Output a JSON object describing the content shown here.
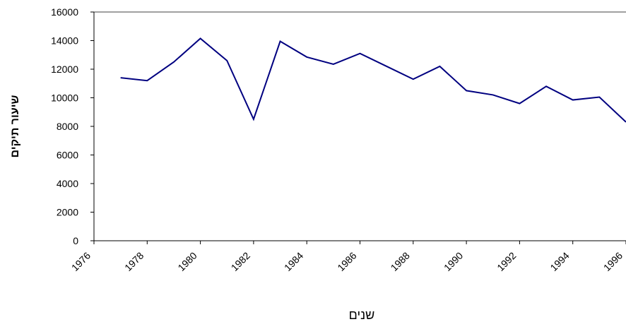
{
  "chart_data": {
    "type": "line",
    "x_label": "שנים",
    "y_label": "שיעור תיקים",
    "x": [
      1977,
      1978,
      1979,
      1980,
      1981,
      1982,
      1983,
      1984,
      1985,
      1986,
      1987,
      1988,
      1989,
      1990,
      1991,
      1992,
      1993,
      1994,
      1995,
      1996
    ],
    "series": [
      {
        "color": "#000080",
        "values": [
          11400,
          11200,
          12500,
          14150,
          12600,
          8500,
          13950,
          12850,
          12350,
          13100,
          12200,
          11300,
          12200,
          10500,
          10200,
          9600,
          10800,
          9850,
          10050,
          8300
        ]
      }
    ],
    "xlim": [
      1976,
      1996
    ],
    "xticks": [
      1976,
      1978,
      1980,
      1982,
      1984,
      1986,
      1988,
      1990,
      1992,
      1994,
      1996
    ],
    "ylim": [
      0,
      16000
    ],
    "yticks": [
      0,
      2000,
      4000,
      6000,
      8000,
      10000,
      12000,
      14000,
      16000
    ]
  }
}
